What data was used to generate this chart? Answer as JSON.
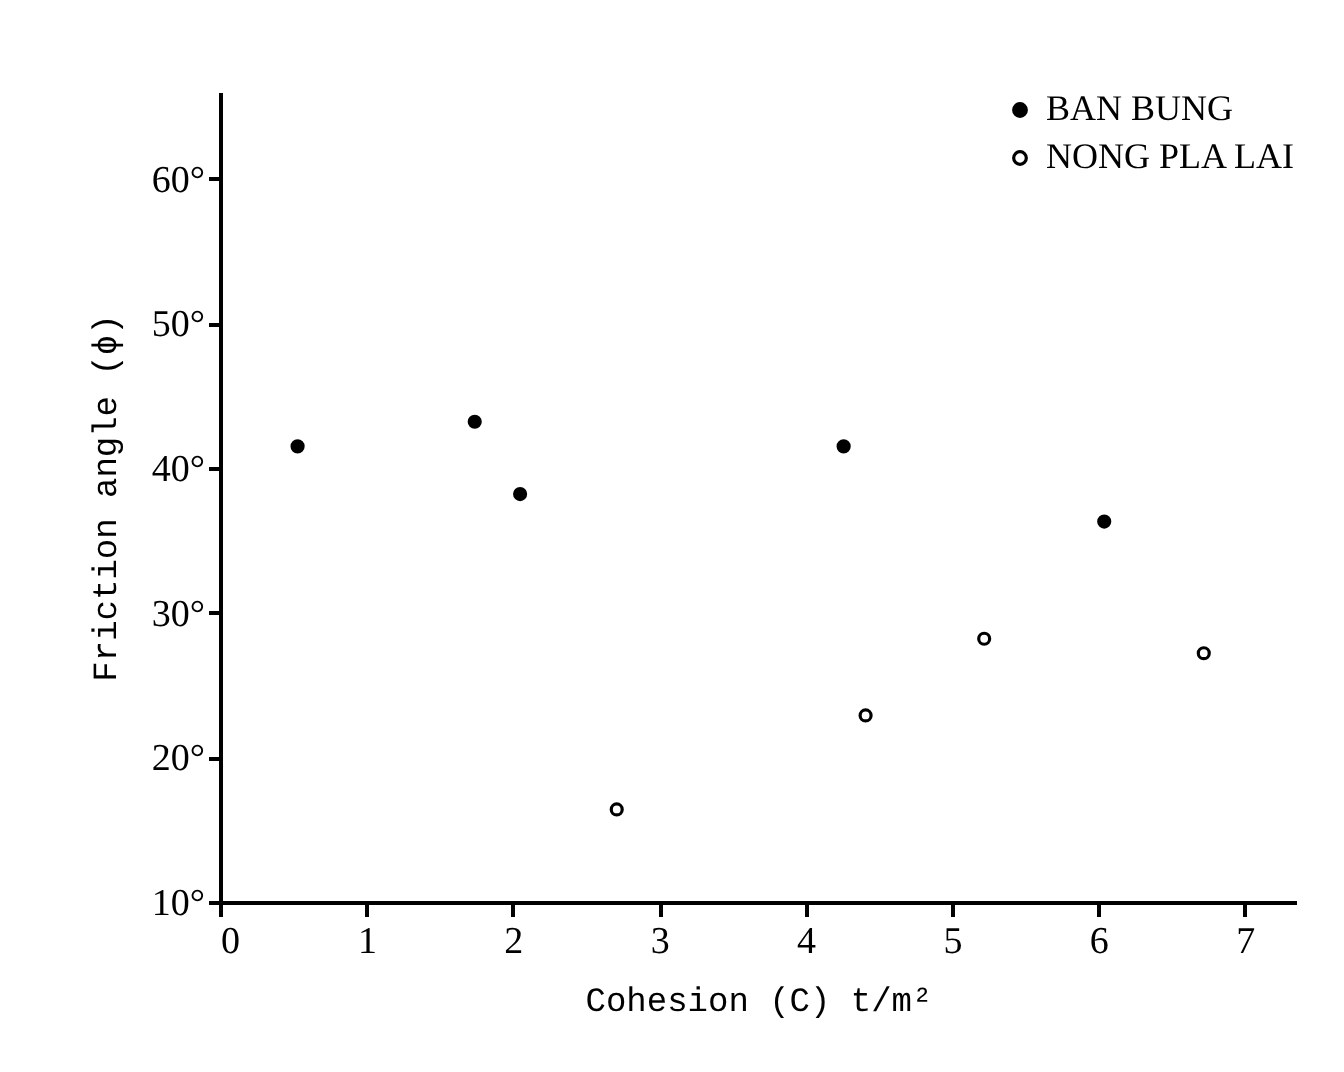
{
  "chart_data": {
    "type": "scatter",
    "xlabel": "Cohesion (C) t/m²",
    "ylabel": "Friction angle (ϕ)",
    "xlim": [
      0,
      7.35
    ],
    "ylim": [
      10,
      66
    ],
    "xticks": [
      0,
      1,
      2,
      3,
      4,
      5,
      6,
      7
    ],
    "yticks": [
      {
        "value": 10,
        "label": "10°"
      },
      {
        "value": 20,
        "label": "20°"
      },
      {
        "value": 30,
        "label": "30°"
      },
      {
        "value": 40,
        "label": "40°"
      },
      {
        "value": 50,
        "label": "50°"
      },
      {
        "value": 60,
        "label": "60°"
      }
    ],
    "grid": false,
    "legend": "top right",
    "marker": "circle",
    "series": [
      {
        "name": "BAN BUNG",
        "color": "#000000",
        "x": [
          0.53,
          1.74,
          2.05,
          4.26,
          6.04
        ],
        "values": [
          41.5,
          43.2,
          38.2,
          41.5,
          36.3
        ]
      },
      {
        "name": "NONG PLA LAI",
        "color": "#ffffff",
        "x": [
          2.71,
          4.41,
          5.22,
          6.72
        ],
        "values": [
          16.4,
          22.9,
          28.2,
          27.2
        ]
      }
    ]
  }
}
